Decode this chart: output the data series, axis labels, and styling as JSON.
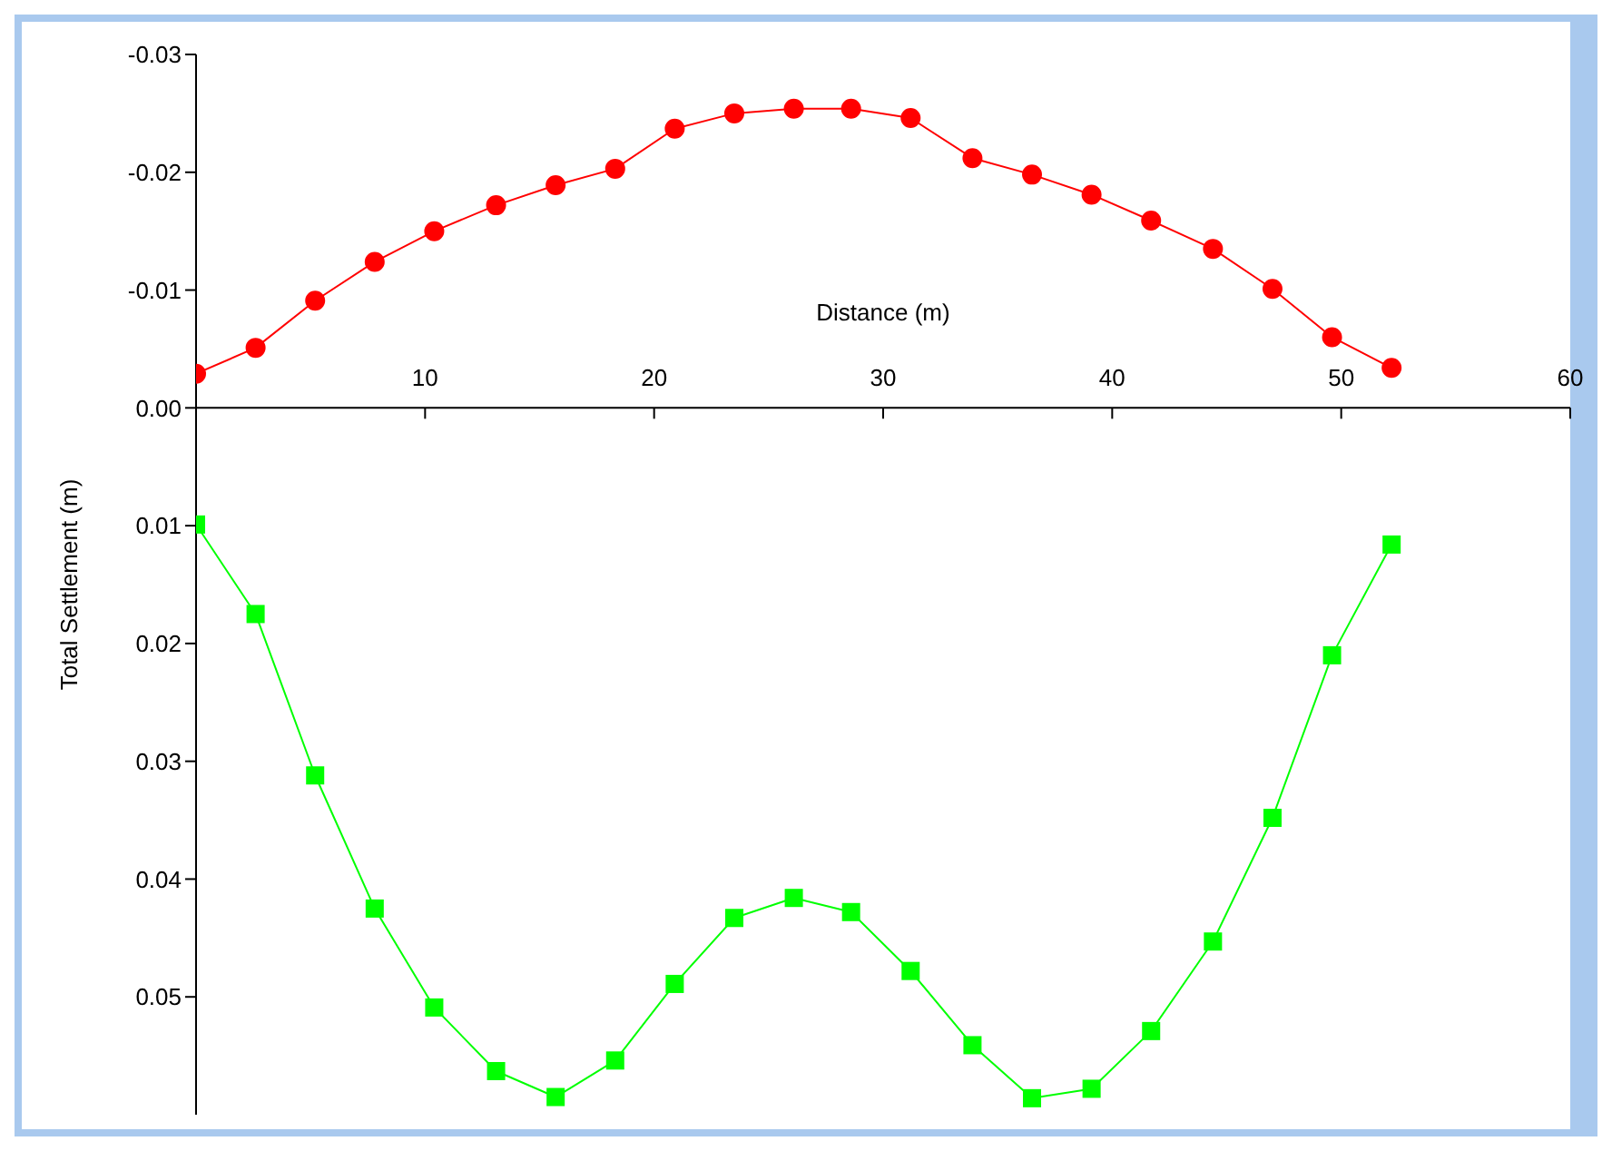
{
  "chart_data": {
    "type": "line",
    "xlabel": "Distance (m)",
    "ylabel": "Total Settlement (m)",
    "xlim": [
      0,
      60
    ],
    "xticks": [
      {
        "value": 0,
        "label": null
      },
      10,
      20,
      30,
      40,
      50,
      60
    ],
    "ylim": [
      0.06,
      -0.03
    ],
    "yticks": [
      -0.03,
      -0.02,
      -0.01,
      {
        "value": 0,
        "label": "0.00"
      },
      0.01,
      0.02,
      0.03,
      0.04,
      0.05
    ],
    "x": [
      0,
      2.6,
      5.2,
      7.8,
      10.4,
      13.1,
      15.7,
      18.3,
      20.9,
      23.5,
      26.1,
      28.6,
      31.2,
      33.9,
      36.5,
      39.1,
      41.7,
      44.4,
      47,
      49.6,
      52.2
    ],
    "series": [
      {
        "color": "#ff0000",
        "marker": "circle",
        "values": [
          -0.0029,
          -0.0051,
          -0.0091,
          -0.0124,
          -0.015,
          -0.0172,
          -0.0189,
          -0.0203,
          -0.0237,
          -0.025,
          -0.0254,
          -0.0254,
          -0.0246,
          -0.0212,
          -0.0198,
          -0.0181,
          -0.0159,
          -0.0135,
          -0.0101,
          -0.006,
          -0.0034
        ]
      },
      {
        "color": "#00ff00",
        "marker": "square",
        "values": [
          0.0099,
          0.0175,
          0.0312,
          0.0425,
          0.0509,
          0.0563,
          0.0585,
          0.0554,
          0.0489,
          0.0433,
          0.0416,
          0.0428,
          0.0478,
          0.0541,
          0.0586,
          0.0578,
          0.0529,
          0.0453,
          0.0348,
          0.021,
          0.0116
        ]
      }
    ]
  }
}
